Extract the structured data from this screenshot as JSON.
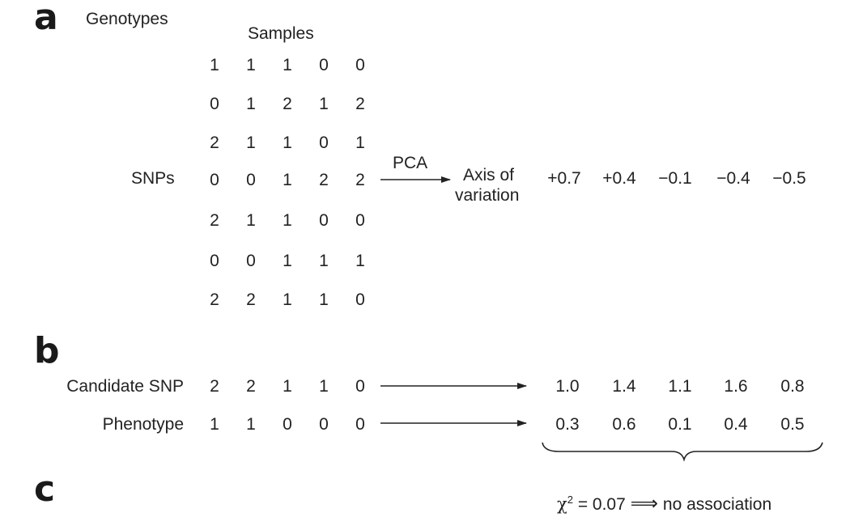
{
  "panels": {
    "a": "a",
    "b": "b",
    "c": "c"
  },
  "genotypes_label": "Genotypes",
  "samples_label": "Samples",
  "snps_label": "SNPs",
  "pca_label": "PCA",
  "axis_label_line1": "Axis of",
  "axis_label_line2": "variation",
  "genotype_matrix": [
    [
      "1",
      "1",
      "1",
      "0",
      "0"
    ],
    [
      "0",
      "1",
      "2",
      "1",
      "2"
    ],
    [
      "2",
      "1",
      "1",
      "0",
      "1"
    ],
    [
      "0",
      "0",
      "1",
      "2",
      "2"
    ],
    [
      "2",
      "1",
      "1",
      "0",
      "0"
    ],
    [
      "0",
      "0",
      "1",
      "1",
      "1"
    ],
    [
      "2",
      "2",
      "1",
      "1",
      "0"
    ]
  ],
  "axis_values": [
    "+0.7",
    "+0.4",
    "−0.1",
    "−0.4",
    "−0.5"
  ],
  "candidate_snp": {
    "label": "Candidate SNP",
    "values": [
      "2",
      "2",
      "1",
      "1",
      "0"
    ],
    "adjusted": [
      "1.0",
      "1.4",
      "1.1",
      "1.6",
      "0.8"
    ]
  },
  "phenotype": {
    "label": "Phenotype",
    "values": [
      "1",
      "1",
      "0",
      "0",
      "0"
    ],
    "adjusted": [
      "0.3",
      "0.6",
      "0.1",
      "0.4",
      "0.5"
    ]
  },
  "chi_square": {
    "symbol": "χ",
    "exponent": "2",
    "equals": "= 0.07",
    "implies": "⟹",
    "conclusion": "no association"
  }
}
